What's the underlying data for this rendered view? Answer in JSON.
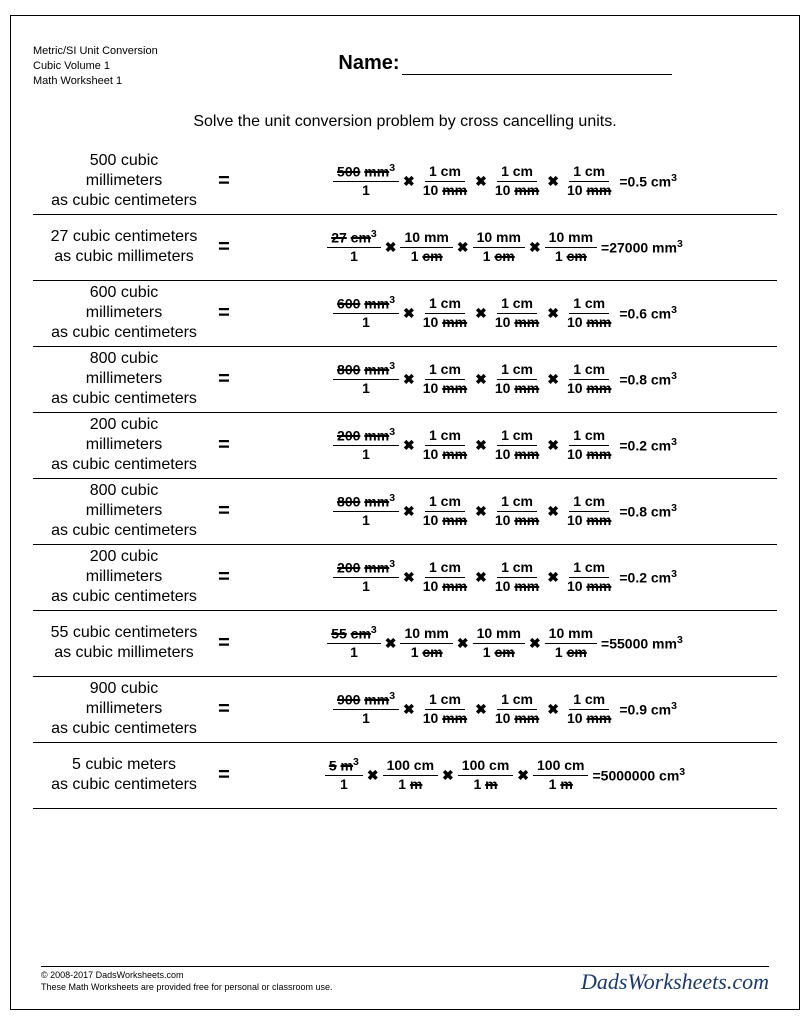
{
  "meta": {
    "line1": "Metric/SI Unit Conversion",
    "line2": "Cubic Volume 1",
    "line3": "Math Worksheet 1"
  },
  "name_label": "Name:",
  "instructions": "Solve the unit conversion problem by cross cancelling units.",
  "problems": [
    {
      "prompt_lines": [
        "500 cubic",
        "millimeters",
        "as cubic centimeters"
      ],
      "start": {
        "num_val": "500",
        "num_unit_s": "mm",
        "num_sup": "3",
        "den": "1"
      },
      "factors": [
        {
          "num": "1 cm",
          "den_val": "10",
          "den_unit_s": "mm"
        },
        {
          "num": "1 cm",
          "den_val": "10",
          "den_unit_s": "mm"
        },
        {
          "num": "1 cm",
          "den_val": "10",
          "den_unit_s": "mm"
        }
      ],
      "result_val": "=0.5 cm",
      "result_sup": "3"
    },
    {
      "prompt_lines": [
        "27 cubic centimeters",
        "as cubic millimeters"
      ],
      "start": {
        "num_val": "27",
        "num_unit_s": "cm",
        "num_sup": "3",
        "den": "1"
      },
      "factors": [
        {
          "num": "10 mm",
          "den_val": "1",
          "den_unit_s": "cm"
        },
        {
          "num": "10 mm",
          "den_val": "1",
          "den_unit_s": "cm"
        },
        {
          "num": "10 mm",
          "den_val": "1",
          "den_unit_s": "cm"
        }
      ],
      "result_val": "=27000 mm",
      "result_sup": "3"
    },
    {
      "prompt_lines": [
        "600 cubic",
        "millimeters",
        "as cubic centimeters"
      ],
      "start": {
        "num_val": "600",
        "num_unit_s": "mm",
        "num_sup": "3",
        "den": "1"
      },
      "factors": [
        {
          "num": "1 cm",
          "den_val": "10",
          "den_unit_s": "mm"
        },
        {
          "num": "1 cm",
          "den_val": "10",
          "den_unit_s": "mm"
        },
        {
          "num": "1 cm",
          "den_val": "10",
          "den_unit_s": "mm"
        }
      ],
      "result_val": "=0.6 cm",
      "result_sup": "3"
    },
    {
      "prompt_lines": [
        "800 cubic",
        "millimeters",
        "as cubic centimeters"
      ],
      "start": {
        "num_val": "800",
        "num_unit_s": "mm",
        "num_sup": "3",
        "den": "1"
      },
      "factors": [
        {
          "num": "1 cm",
          "den_val": "10",
          "den_unit_s": "mm"
        },
        {
          "num": "1 cm",
          "den_val": "10",
          "den_unit_s": "mm"
        },
        {
          "num": "1 cm",
          "den_val": "10",
          "den_unit_s": "mm"
        }
      ],
      "result_val": "=0.8 cm",
      "result_sup": "3"
    },
    {
      "prompt_lines": [
        "200 cubic",
        "millimeters",
        "as cubic centimeters"
      ],
      "start": {
        "num_val": "200",
        "num_unit_s": "mm",
        "num_sup": "3",
        "den": "1"
      },
      "factors": [
        {
          "num": "1 cm",
          "den_val": "10",
          "den_unit_s": "mm"
        },
        {
          "num": "1 cm",
          "den_val": "10",
          "den_unit_s": "mm"
        },
        {
          "num": "1 cm",
          "den_val": "10",
          "den_unit_s": "mm"
        }
      ],
      "result_val": "=0.2 cm",
      "result_sup": "3"
    },
    {
      "prompt_lines": [
        "800 cubic",
        "millimeters",
        "as cubic centimeters"
      ],
      "start": {
        "num_val": "800",
        "num_unit_s": "mm",
        "num_sup": "3",
        "den": "1"
      },
      "factors": [
        {
          "num": "1 cm",
          "den_val": "10",
          "den_unit_s": "mm"
        },
        {
          "num": "1 cm",
          "den_val": "10",
          "den_unit_s": "mm"
        },
        {
          "num": "1 cm",
          "den_val": "10",
          "den_unit_s": "mm"
        }
      ],
      "result_val": "=0.8 cm",
      "result_sup": "3"
    },
    {
      "prompt_lines": [
        "200 cubic",
        "millimeters",
        "as cubic centimeters"
      ],
      "start": {
        "num_val": "200",
        "num_unit_s": "mm",
        "num_sup": "3",
        "den": "1"
      },
      "factors": [
        {
          "num": "1 cm",
          "den_val": "10",
          "den_unit_s": "mm"
        },
        {
          "num": "1 cm",
          "den_val": "10",
          "den_unit_s": "mm"
        },
        {
          "num": "1 cm",
          "den_val": "10",
          "den_unit_s": "mm"
        }
      ],
      "result_val": "=0.2 cm",
      "result_sup": "3"
    },
    {
      "prompt_lines": [
        "55 cubic centimeters",
        "as cubic millimeters"
      ],
      "start": {
        "num_val": "55",
        "num_unit_s": "cm",
        "num_sup": "3",
        "den": "1"
      },
      "factors": [
        {
          "num": "10 mm",
          "den_val": "1",
          "den_unit_s": "cm"
        },
        {
          "num": "10 mm",
          "den_val": "1",
          "den_unit_s": "cm"
        },
        {
          "num": "10 mm",
          "den_val": "1",
          "den_unit_s": "cm"
        }
      ],
      "result_val": "=55000 mm",
      "result_sup": "3"
    },
    {
      "prompt_lines": [
        "900 cubic",
        "millimeters",
        "as cubic centimeters"
      ],
      "start": {
        "num_val": "900",
        "num_unit_s": "mm",
        "num_sup": "3",
        "den": "1"
      },
      "factors": [
        {
          "num": "1 cm",
          "den_val": "10",
          "den_unit_s": "mm"
        },
        {
          "num": "1 cm",
          "den_val": "10",
          "den_unit_s": "mm"
        },
        {
          "num": "1 cm",
          "den_val": "10",
          "den_unit_s": "mm"
        }
      ],
      "result_val": "=0.9 cm",
      "result_sup": "3"
    },
    {
      "prompt_lines": [
        "5 cubic meters",
        "as cubic centimeters"
      ],
      "start": {
        "num_val": "5",
        "num_unit_s": "m",
        "num_sup": "3",
        "den": "1"
      },
      "factors": [
        {
          "num": "100 cm",
          "den_val": "1",
          "den_unit_s": "m"
        },
        {
          "num": "100 cm",
          "den_val": "1",
          "den_unit_s": "m"
        },
        {
          "num": "100 cm",
          "den_val": "1",
          "den_unit_s": "m"
        }
      ],
      "result_val": "=5000000 cm",
      "result_sup": "3"
    }
  ],
  "footer": {
    "copyright": "© 2008-2017 DadsWorksheets.com",
    "note": "These Math Worksheets are provided free for personal or classroom use.",
    "brand": "DadsWorksheets.com"
  },
  "colors": {
    "text": "#000000",
    "brand": "#1a3a6e",
    "bg": "#ffffff"
  }
}
